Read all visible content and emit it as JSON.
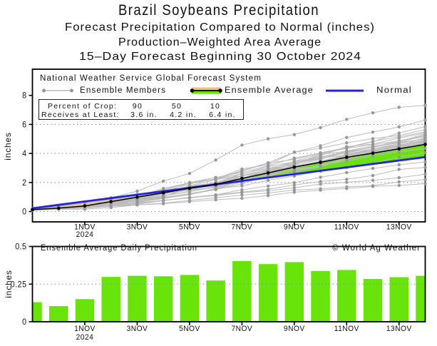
{
  "header": {
    "title": "Brazil Soybeans Precipitation",
    "subtitle1": "Forecast Precipitation Compared to Normal (inches)",
    "subtitle2": "Production–Weighted Area Average",
    "subtitle3": "15–Day Forecast Beginning 30 October 2024"
  },
  "top_chart": {
    "source_label": "National Weather Service Global Forecast System",
    "legend": {
      "members_label": "Ensemble Members",
      "average_label": "Ensemble Average",
      "normal_label": "Normal"
    },
    "crop_box": {
      "row1_label": "Percent of Crop:",
      "row1_values": [
        "90",
        "50",
        "10"
      ],
      "row2_label": "Receives at Least:",
      "row2_values": [
        "3.6 in.",
        "4.2 in.",
        "6.4 in."
      ]
    },
    "ylabel": "inches"
  },
  "bottom_chart": {
    "title": "Ensemble Average Daily Precipitation",
    "copyright": "© World Ag Weather",
    "ylabel": "inches"
  },
  "chart_data": [
    {
      "type": "line",
      "title": "Forecast cumulative precipitation compared to normal (inches)",
      "x_days": [
        0,
        1,
        2,
        3,
        4,
        5,
        6,
        7,
        8,
        9,
        10,
        11,
        12,
        13,
        14,
        15
      ],
      "x_start_date": "30 October 2024",
      "xlim": [
        0,
        15
      ],
      "ylim_drawn": [
        -0.74,
        9.8
      ],
      "yticks": [
        0,
        2,
        4,
        6,
        8
      ],
      "ytick_labels": [
        "0",
        "2",
        "4",
        "6",
        "8"
      ],
      "grid_yticks": [
        0,
        2,
        4,
        6
      ],
      "xticks": [
        {
          "day": 2,
          "label": "1NOV",
          "sub": "2024"
        },
        {
          "day": 4,
          "label": "3NOV"
        },
        {
          "day": 6,
          "label": "5NOV"
        },
        {
          "day": 8,
          "label": "7NOV"
        },
        {
          "day": 10,
          "label": "9NOV"
        },
        {
          "day": 12,
          "label": "11NOV"
        },
        {
          "day": 14,
          "label": "13NOV"
        }
      ],
      "series": [
        {
          "name": "Normal",
          "values": [
            0.22,
            0.455,
            0.691,
            0.926,
            1.161,
            1.397,
            1.632,
            1.867,
            2.102,
            2.338,
            2.573,
            2.808,
            3.044,
            3.279,
            3.514,
            3.75
          ]
        },
        {
          "name": "Ensemble Average",
          "values": [
            0.13,
            0.234,
            0.384,
            0.682,
            0.987,
            1.289,
            1.6,
            1.874,
            2.277,
            2.66,
            3.056,
            3.393,
            3.737,
            4.021,
            4.317,
            4.622
          ]
        },
        {
          "name": "Ensemble Members",
          "members": [
            [
              0.18,
              0.35,
              0.62,
              0.95,
              1.4,
              2.1,
              2.62,
              3.55,
              4.58,
              5.01,
              5.3,
              5.78,
              6.35,
              6.8,
              7.18,
              7.31
            ],
            [
              0.09,
              0.23,
              0.43,
              0.69,
              1.04,
              1.39,
              1.89,
              2.25,
              2.93,
              3.22,
              4.09,
              4.53,
              5.1,
              5.47,
              5.83,
              6.3
            ],
            [
              0.15,
              0.25,
              0.4,
              0.84,
              1.17,
              1.46,
              2.0,
              2.35,
              2.69,
              3.15,
              3.68,
              4.03,
              4.37,
              4.81,
              5.41,
              5.85
            ],
            [
              0.09,
              0.18,
              0.35,
              0.62,
              1.05,
              1.59,
              1.97,
              2.24,
              2.82,
              3.36,
              4.08,
              4.37,
              4.73,
              5.02,
              5.24,
              5.65
            ],
            [
              0.1,
              0.16,
              0.34,
              0.7,
              1.1,
              1.5,
              1.99,
              2.21,
              2.78,
              3.33,
              3.59,
              4.04,
              4.41,
              4.84,
              5.14,
              5.5
            ],
            [
              0.16,
              0.25,
              0.33,
              0.63,
              0.91,
              1.27,
              1.55,
              1.95,
              2.45,
              2.83,
              3.33,
              3.85,
              4.47,
              4.65,
              5.05,
              5.42
            ],
            [
              0.11,
              0.16,
              0.32,
              0.49,
              0.86,
              1.35,
              1.55,
              1.82,
              2.12,
              2.56,
              3.25,
              3.94,
              4.15,
              4.41,
              4.81,
              5.35
            ],
            [
              0.17,
              0.23,
              0.36,
              0.64,
              0.95,
              1.24,
              1.66,
              2.02,
              2.49,
              2.92,
              3.24,
              3.58,
              4.18,
              4.5,
              4.73,
              5.28
            ],
            [
              0.09,
              0.22,
              0.34,
              0.56,
              0.75,
              1.25,
              2.0,
              2.23,
              2.59,
              3.09,
              3.43,
              3.77,
              4.1,
              4.43,
              4.88,
              5.22
            ],
            [
              0.11,
              0.18,
              0.3,
              0.44,
              0.64,
              1.07,
              1.36,
              1.72,
              2.25,
              2.9,
              3.46,
              3.98,
              4.35,
              4.6,
              4.87,
              5.16
            ],
            [
              0.16,
              0.21,
              0.31,
              0.55,
              0.79,
              0.95,
              1.24,
              1.52,
              2.06,
              2.5,
              2.81,
              3.07,
              3.69,
              4.03,
              4.53,
              5.1
            ],
            [
              0.11,
              0.19,
              0.32,
              0.63,
              1.0,
              1.35,
              1.72,
              1.91,
              2.33,
              2.67,
              3.13,
              3.45,
              3.91,
              4.32,
              4.68,
              5.05
            ],
            [
              0.16,
              0.23,
              0.35,
              0.58,
              0.96,
              1.32,
              1.77,
              1.98,
              2.61,
              2.98,
              3.35,
              3.73,
              4.07,
              4.44,
              4.74,
              5.0
            ],
            [
              0.17,
              0.27,
              0.38,
              0.54,
              0.84,
              1.03,
              1.59,
              1.77,
              2.26,
              2.73,
              2.99,
              3.37,
              3.86,
              4.2,
              4.53,
              4.96
            ],
            [
              0.14,
              0.21,
              0.31,
              0.6,
              0.81,
              1.2,
              1.47,
              1.67,
              2.13,
              2.79,
              3.33,
              3.63,
              4.06,
              4.31,
              4.6,
              4.92
            ],
            [
              0.18,
              0.25,
              0.33,
              0.54,
              0.73,
              0.94,
              1.19,
              1.58,
              2.32,
              2.73,
              3.34,
              3.68,
              3.89,
              4.22,
              4.59,
              4.88
            ],
            [
              0.08,
              0.16,
              0.23,
              0.38,
              0.63,
              0.9,
              1.17,
              1.53,
              2.2,
              2.52,
              3.0,
              3.43,
              3.85,
              4.23,
              4.48,
              4.85
            ],
            [
              0.09,
              0.18,
              0.26,
              0.55,
              0.97,
              1.32,
              1.58,
              2.03,
              2.31,
              2.77,
              3.17,
              3.4,
              3.91,
              4.24,
              4.45,
              4.82
            ],
            [
              0.18,
              0.22,
              0.3,
              0.55,
              0.88,
              1.19,
              1.5,
              1.81,
              2.18,
              2.72,
              3.12,
              3.48,
              3.88,
              4.08,
              4.31,
              4.79
            ],
            [
              0.14,
              0.2,
              0.33,
              0.56,
              0.91,
              1.18,
              1.57,
              1.76,
              2.45,
              2.82,
              3.09,
              3.45,
              3.8,
              4.13,
              4.37,
              4.76
            ],
            [
              0.18,
              0.22,
              0.33,
              0.53,
              0.82,
              0.99,
              1.2,
              1.51,
              1.9,
              2.52,
              2.83,
              3.17,
              4.0,
              4.22,
              4.44,
              4.73
            ],
            [
              0.12,
              0.2,
              0.29,
              0.46,
              0.72,
              1.33,
              1.75,
              1.85,
              2.19,
              2.45,
              2.88,
              3.17,
              3.73,
              4.06,
              4.41,
              4.7
            ],
            [
              0.09,
              0.17,
              0.33,
              0.61,
              0.87,
              1.34,
              1.68,
              1.96,
              2.29,
              2.62,
              2.96,
              3.11,
              3.6,
              3.95,
              4.24,
              4.68
            ],
            [
              0.11,
              0.18,
              0.23,
              0.44,
              0.76,
              1.24,
              1.78,
              2.19,
              2.47,
              2.66,
              3.12,
              3.45,
              3.9,
              4.17,
              4.47,
              4.66
            ],
            [
              0.18,
              0.23,
              0.33,
              0.57,
              0.81,
              1.1,
              1.38,
              1.68,
              2.1,
              2.39,
              2.68,
              3.19,
              3.49,
              3.83,
              4.12,
              4.35
            ],
            [
              0.13,
              0.19,
              0.28,
              0.53,
              0.7,
              0.92,
              1.19,
              1.59,
              1.76,
              2.15,
              2.44,
              2.78,
              3.04,
              3.32,
              3.75,
              4.05
            ],
            [
              0.12,
              0.17,
              0.23,
              0.42,
              0.6,
              0.76,
              0.97,
              1.15,
              1.5,
              1.76,
              1.99,
              2.36,
              2.68,
              2.97,
              3.22,
              3.42
            ],
            [
              0.12,
              0.16,
              0.26,
              0.43,
              0.56,
              0.78,
              0.93,
              1.14,
              1.34,
              1.53,
              1.83,
              2.07,
              2.22,
              2.48,
              2.9,
              3.04
            ],
            [
              0.19,
              0.22,
              0.27,
              0.39,
              0.5,
              0.75,
              0.96,
              1.09,
              1.3,
              1.43,
              1.64,
              1.89,
              2.01,
              2.15,
              2.33,
              2.57
            ],
            [
              0.19,
              0.21,
              0.25,
              0.36,
              0.46,
              0.58,
              0.76,
              0.95,
              1.13,
              1.28,
              1.48,
              1.56,
              1.7,
              1.78,
              2.04,
              2.2
            ],
            [
              0.12,
              0.15,
              0.16,
              0.27,
              0.45,
              0.54,
              0.68,
              0.81,
              0.91,
              1.1,
              1.33,
              1.47,
              1.59,
              1.73,
              1.8,
              1.92
            ]
          ]
        }
      ]
    },
    {
      "type": "bar",
      "title": "Ensemble Average Daily Precipitation",
      "values": [
        0.13,
        0.104,
        0.15,
        0.298,
        0.305,
        0.302,
        0.311,
        0.274,
        0.403,
        0.383,
        0.396,
        0.337,
        0.344,
        0.284,
        0.296,
        0.305
      ],
      "x_days": [
        0,
        1,
        2,
        3,
        4,
        5,
        6,
        7,
        8,
        9,
        10,
        11,
        12,
        13,
        14,
        15
      ],
      "xlim": [
        0,
        15
      ],
      "ylim": [
        0,
        0.5
      ],
      "yticks": [
        0,
        0.25,
        0.5
      ],
      "ytick_labels": [
        "0",
        "0.25",
        "0.5"
      ],
      "grid_yticks": [
        0.25
      ],
      "xticks": [
        {
          "day": 2,
          "label": "1NOV",
          "sub": "2024"
        },
        {
          "day": 4,
          "label": "3NOV"
        },
        {
          "day": 6,
          "label": "5NOV"
        },
        {
          "day": 8,
          "label": "7NOV"
        },
        {
          "day": 10,
          "label": "9NOV"
        },
        {
          "day": 12,
          "label": "11NOV"
        },
        {
          "day": 14,
          "label": "13NOV"
        }
      ]
    }
  ],
  "colors": {
    "bar_green": "#68e40a",
    "fill_green": "#68e40a",
    "fill_tan": "#e9c38a",
    "normal_blue": "#2424e0",
    "member_line": "#bcbcbc",
    "member_dot": "#989898",
    "average_black": "#000000",
    "grid_gray": "#8a8a8a",
    "text": "#111111"
  }
}
